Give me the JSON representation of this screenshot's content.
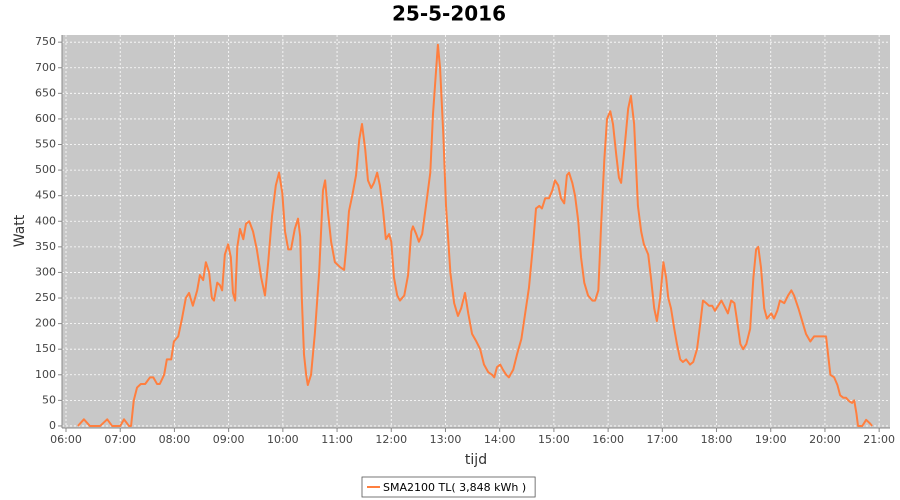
{
  "chart_data": {
    "type": "line",
    "title": "25-5-2016",
    "x_label": "tijd",
    "y_label": "Watt",
    "xlim": [
      5.926,
      21.2
    ],
    "ylim": [
      -4,
      764
    ],
    "xticks": [
      {
        "value": 6,
        "label": "06:00"
      },
      {
        "value": 7,
        "label": "07:00"
      },
      {
        "value": 8,
        "label": "08:00"
      },
      {
        "value": 9,
        "label": "09:00"
      },
      {
        "value": 10,
        "label": "10:00"
      },
      {
        "value": 11,
        "label": "11:00"
      },
      {
        "value": 12,
        "label": "12:00"
      },
      {
        "value": 13,
        "label": "13:00"
      },
      {
        "value": 14,
        "label": "14:00"
      },
      {
        "value": 15,
        "label": "15:00"
      },
      {
        "value": 16,
        "label": "16:00"
      },
      {
        "value": 17,
        "label": "17:00"
      },
      {
        "value": 18,
        "label": "18:00"
      },
      {
        "value": 19,
        "label": "19:00"
      },
      {
        "value": 20,
        "label": "20:00"
      },
      {
        "value": 21,
        "label": "21:00"
      }
    ],
    "yticks": [
      0,
      50,
      100,
      150,
      200,
      250,
      300,
      350,
      400,
      450,
      500,
      550,
      600,
      650,
      700,
      750
    ],
    "grid": true,
    "plot_background": "#c8c8c8",
    "legend": "bottom",
    "x": [
      6.22,
      6.33,
      6.44,
      6.63,
      6.76,
      6.85,
      7.0,
      7.07,
      7.16,
      7.2,
      7.25,
      7.31,
      7.38,
      7.46,
      7.55,
      7.61,
      7.68,
      7.73,
      7.81,
      7.86,
      7.94,
      7.99,
      8.07,
      8.14,
      8.21,
      8.27,
      8.34,
      8.42,
      8.47,
      8.53,
      8.58,
      8.64,
      8.69,
      8.73,
      8.79,
      8.84,
      8.88,
      8.93,
      8.99,
      9.04,
      9.08,
      9.12,
      9.16,
      9.21,
      9.27,
      9.32,
      9.38,
      9.45,
      9.52,
      9.6,
      9.67,
      9.73,
      9.8,
      9.87,
      9.93,
      9.99,
      10.04,
      10.1,
      10.15,
      10.22,
      10.28,
      10.32,
      10.35,
      10.39,
      10.43,
      10.46,
      10.52,
      10.59,
      10.67,
      10.74,
      10.78,
      10.83,
      10.89,
      10.96,
      11.06,
      11.13,
      11.17,
      11.22,
      11.28,
      11.35,
      11.41,
      11.46,
      11.52,
      11.57,
      11.63,
      11.68,
      11.74,
      11.79,
      11.85,
      11.9,
      11.96,
      12.0,
      12.05,
      12.11,
      12.16,
      12.24,
      12.31,
      12.37,
      12.4,
      12.46,
      12.51,
      12.57,
      12.64,
      12.72,
      12.77,
      12.83,
      12.86,
      12.9,
      12.96,
      13.01,
      13.09,
      13.16,
      13.23,
      13.29,
      13.36,
      13.42,
      13.49,
      13.57,
      13.64,
      13.71,
      13.79,
      13.86,
      13.9,
      13.95,
      14.01,
      14.06,
      14.12,
      14.17,
      14.25,
      14.32,
      14.4,
      14.47,
      14.54,
      14.62,
      14.67,
      14.73,
      14.78,
      14.84,
      14.91,
      14.97,
      15.02,
      15.08,
      15.13,
      15.19,
      15.24,
      15.28,
      15.34,
      15.39,
      15.45,
      15.5,
      15.56,
      15.63,
      15.71,
      15.76,
      15.82,
      15.87,
      15.93,
      15.98,
      16.04,
      16.09,
      16.15,
      16.2,
      16.24,
      16.3,
      16.37,
      16.42,
      16.48,
      16.55,
      16.61,
      16.66,
      16.74,
      16.79,
      16.85,
      16.9,
      16.96,
      17.02,
      17.07,
      17.11,
      17.16,
      17.22,
      17.27,
      17.33,
      17.38,
      17.44,
      17.51,
      17.57,
      17.64,
      17.7,
      17.75,
      17.81,
      17.86,
      17.92,
      17.97,
      18.03,
      18.09,
      18.14,
      18.21,
      18.27,
      18.33,
      18.38,
      18.44,
      18.49,
      18.55,
      18.62,
      18.68,
      18.73,
      18.77,
      18.82,
      18.88,
      18.93,
      19.01,
      19.06,
      19.12,
      19.17,
      19.25,
      19.32,
      19.38,
      19.43,
      19.51,
      19.58,
      19.65,
      19.73,
      19.8,
      19.87,
      19.95,
      20.02,
      20.1,
      20.17,
      20.23,
      20.28,
      20.34,
      20.39,
      20.45,
      20.5,
      20.54,
      20.58,
      20.61,
      20.69,
      20.76,
      20.83,
      20.87
    ],
    "series": [
      {
        "name": "SMA2100 TL( 3,848 kWh )",
        "color": "#ff7f3f",
        "values": [
          0,
          13,
          0,
          0,
          13,
          0,
          0,
          13,
          0,
          0,
          50,
          75,
          82,
          82,
          95,
          95,
          82,
          82,
          100,
          130,
          130,
          165,
          175,
          210,
          250,
          260,
          235,
          265,
          295,
          285,
          320,
          300,
          250,
          245,
          280,
          275,
          265,
          335,
          355,
          330,
          260,
          245,
          350,
          385,
          365,
          395,
          400,
          380,
          345,
          290,
          255,
          320,
          410,
          470,
          495,
          455,
          380,
          345,
          345,
          385,
          405,
          370,
          250,
          140,
          100,
          80,
          100,
          180,
          300,
          460,
          480,
          420,
          360,
          320,
          310,
          305,
          350,
          420,
          450,
          490,
          560,
          590,
          540,
          480,
          465,
          475,
          495,
          470,
          420,
          365,
          375,
          360,
          290,
          255,
          245,
          255,
          295,
          380,
          390,
          375,
          360,
          375,
          430,
          495,
          610,
          700,
          745,
          700,
          570,
          430,
          300,
          240,
          215,
          230,
          260,
          220,
          180,
          165,
          150,
          120,
          105,
          100,
          95,
          115,
          120,
          110,
          100,
          95,
          110,
          140,
          170,
          220,
          270,
          360,
          425,
          430,
          425,
          445,
          445,
          460,
          480,
          470,
          445,
          435,
          490,
          495,
          475,
          450,
          400,
          330,
          280,
          255,
          245,
          245,
          265,
          390,
          520,
          600,
          615,
          590,
          530,
          485,
          475,
          540,
          620,
          645,
          590,
          430,
          380,
          355,
          335,
          290,
          230,
          205,
          250,
          320,
          290,
          250,
          230,
          190,
          160,
          130,
          125,
          130,
          120,
          125,
          150,
          200,
          245,
          240,
          235,
          235,
          225,
          235,
          245,
          235,
          220,
          245,
          240,
          205,
          160,
          150,
          160,
          190,
          290,
          345,
          350,
          310,
          230,
          210,
          220,
          210,
          225,
          245,
          240,
          255,
          265,
          255,
          230,
          205,
          180,
          165,
          175,
          175,
          175,
          175,
          100,
          95,
          80,
          60,
          55,
          55,
          48,
          45,
          50,
          25,
          0,
          0,
          12,
          5,
          0
        ]
      }
    ]
  }
}
